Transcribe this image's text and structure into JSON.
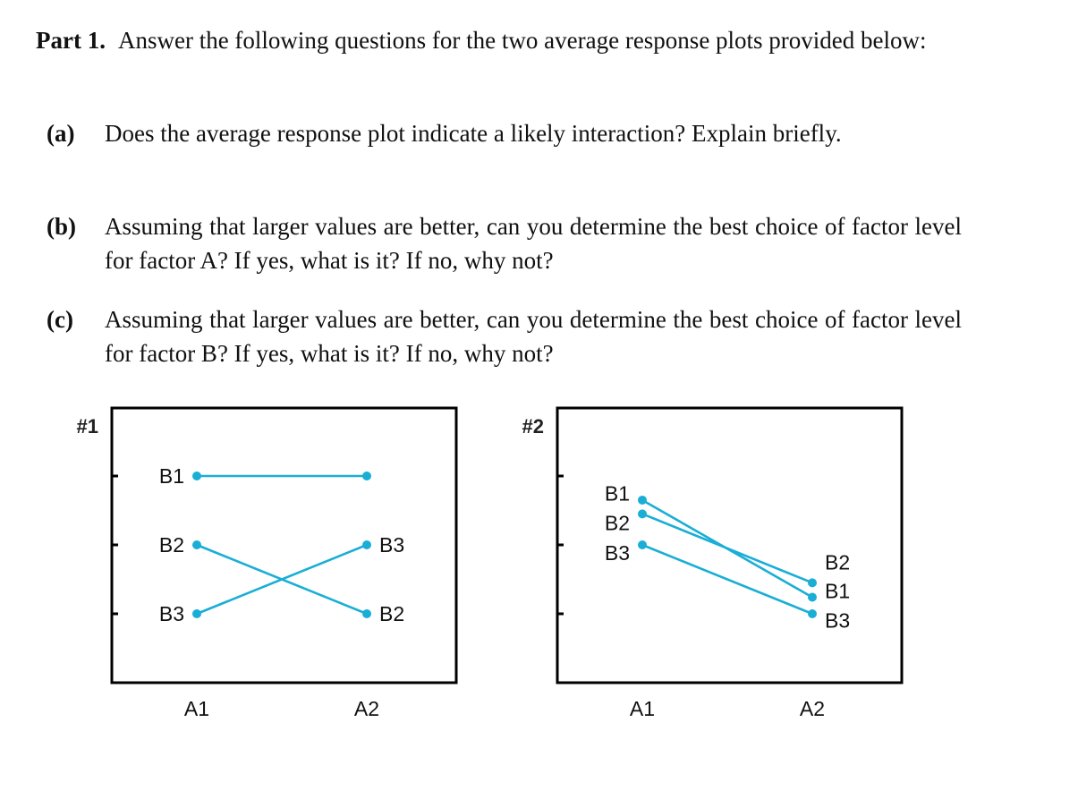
{
  "part": {
    "label": "Part 1.",
    "text": "Answer the following questions for the two average response plots provided below:"
  },
  "questions": [
    {
      "label": "(a)",
      "text": "Does the average response plot indicate a likely interaction? Explain briefly."
    },
    {
      "label": "(b)",
      "text": "Assuming that larger values are better, can you determine the best choice of factor level for factor A? If yes, what is it? If no, why not?"
    },
    {
      "label": "(c)",
      "text": "Assuming that larger values are better, can you determine the best choice of factor level for factor B? If yes, what is it? If no, why not?"
    }
  ],
  "colors": {
    "line": "#1aaed6",
    "frame": "#000000"
  },
  "chart_data": [
    {
      "type": "line",
      "title": "#1",
      "categories": [
        "A1",
        "A2"
      ],
      "ylim": [
        0,
        4
      ],
      "yticks": [
        1,
        2,
        3
      ],
      "series": [
        {
          "name": "B1",
          "values": [
            3,
            3
          ]
        },
        {
          "name": "B2",
          "values": [
            2,
            1
          ]
        },
        {
          "name": "B3",
          "values": [
            1,
            2
          ]
        }
      ],
      "left_labels": [
        {
          "text": "B1",
          "value": 3
        },
        {
          "text": "B2",
          "value": 2
        },
        {
          "text": "B3",
          "value": 1
        }
      ],
      "right_labels": [
        {
          "text": "B3",
          "value": 2
        },
        {
          "text": "B2",
          "value": 1
        }
      ]
    },
    {
      "type": "line",
      "title": "#2",
      "categories": [
        "A1",
        "A2"
      ],
      "ylim": [
        0,
        4
      ],
      "yticks": [
        1,
        2,
        3
      ],
      "series": [
        {
          "name": "B1",
          "values": [
            2.65,
            1.24
          ]
        },
        {
          "name": "B2",
          "values": [
            2.45,
            1.45
          ]
        },
        {
          "name": "B3",
          "values": [
            2.0,
            1.0
          ]
        }
      ],
      "left_labels": [
        {
          "text": "B1",
          "value": 2.75
        },
        {
          "text": "B2",
          "value": 2.32
        },
        {
          "text": "B3",
          "value": 1.88
        }
      ],
      "right_labels": [
        {
          "text": "B2",
          "value": 1.75
        },
        {
          "text": "B1",
          "value": 1.33
        },
        {
          "text": "B3",
          "value": 0.9
        }
      ]
    }
  ]
}
